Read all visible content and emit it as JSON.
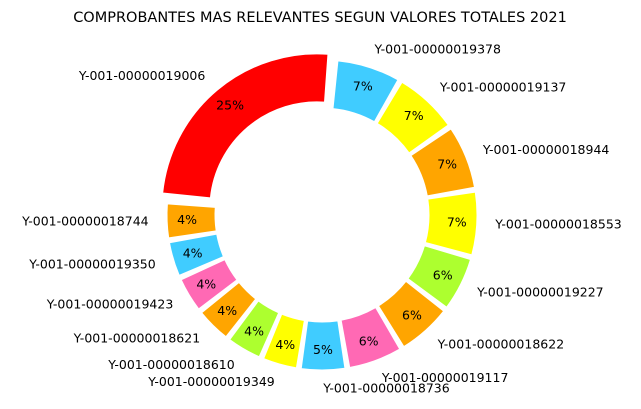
{
  "chart_data": {
    "type": "pie",
    "variant": "donut",
    "title": "COMPROBANTES MAS RELEVANTES SEGUN VALORES TOTALES 2021",
    "slices": [
      {
        "label": "Y-001-00000019006",
        "value": 25,
        "pct_label": "25%",
        "color": "#ff0000"
      },
      {
        "label": "Y-001-00000018744",
        "value": 4,
        "pct_label": "4%",
        "color": "#ffa500"
      },
      {
        "label": "Y-001-00000019350",
        "value": 4,
        "pct_label": "4%",
        "color": "#40ccff"
      },
      {
        "label": "Y-001-00000019423",
        "value": 4,
        "pct_label": "4%",
        "color": "#ff69b4"
      },
      {
        "label": "Y-001-00000018621",
        "value": 4,
        "pct_label": "4%",
        "color": "#ffa500"
      },
      {
        "label": "Y-001-00000018610",
        "value": 4,
        "pct_label": "4%",
        "color": "#adff2f"
      },
      {
        "label": "Y-001-00000019349",
        "value": 4,
        "pct_label": "4%",
        "color": "#ffff00"
      },
      {
        "label": "Y-001-00000018736",
        "value": 5,
        "pct_label": "5%",
        "color": "#40ccff"
      },
      {
        "label": "Y-001-00000019117",
        "value": 6,
        "pct_label": "6%",
        "color": "#ff69b4"
      },
      {
        "label": "Y-001-00000018622",
        "value": 6,
        "pct_label": "6%",
        "color": "#ffa500"
      },
      {
        "label": "Y-001-00000019227",
        "value": 6,
        "pct_label": "6%",
        "color": "#adff2f"
      },
      {
        "label": "Y-001-00000018553",
        "value": 7,
        "pct_label": "7%",
        "color": "#ffff00"
      },
      {
        "label": "Y-001-00000018944",
        "value": 7,
        "pct_label": "7%",
        "color": "#ffa500"
      },
      {
        "label": "Y-001-00000019137",
        "value": 7,
        "pct_label": "7%",
        "color": "#ffff00"
      },
      {
        "label": "Y-001-00000019378",
        "value": 7,
        "pct_label": "7%",
        "color": "#40ccff"
      }
    ]
  }
}
